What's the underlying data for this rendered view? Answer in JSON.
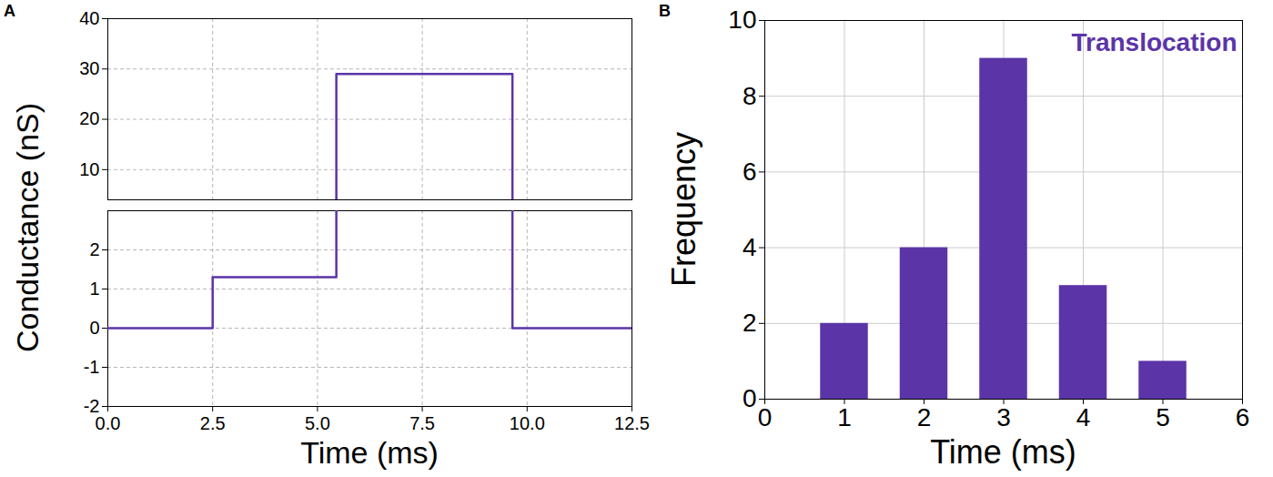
{
  "chart_data": [
    {
      "panel": "A",
      "type": "line",
      "x_label": "Time (ms)",
      "y_label": "Conductance (nS)",
      "x": [
        0,
        2.5,
        5.45,
        9.65,
        12.5
      ],
      "series": [
        {
          "color": "#5b34a8",
          "line_style": "step",
          "values": [
            0,
            1.3,
            29,
            0,
            0
          ]
        }
      ],
      "xlim": [
        0,
        12.5
      ],
      "xticks": [
        {
          "value": 0,
          "label": "0.0"
        },
        2.5,
        {
          "value": 5,
          "label": "5.0"
        },
        7.5,
        {
          "value": 10,
          "label": "10.0"
        },
        12.5
      ],
      "y_segments": [
        {
          "ylim": [
            4,
            40
          ],
          "yticks": [
            10,
            20,
            30,
            40
          ]
        },
        {
          "ylim": [
            -2,
            3
          ],
          "yticks": [
            -2,
            -1,
            0,
            1,
            2
          ]
        }
      ],
      "grid": true
    },
    {
      "panel": "B",
      "type": "bar",
      "x_label": "Time (ms)",
      "y_label": "Frequency",
      "annotation": "Translocation",
      "x": [
        1,
        2,
        3,
        4,
        5
      ],
      "values": [
        2,
        4,
        9,
        3,
        1
      ],
      "color": "#5b34a8",
      "xlim": [
        0,
        6
      ],
      "xticks": [
        0,
        1,
        2,
        3,
        4,
        5,
        6
      ],
      "ylim": [
        0,
        10
      ],
      "yticks": [
        0,
        2,
        4,
        6,
        8,
        10
      ],
      "grid": true
    }
  ]
}
